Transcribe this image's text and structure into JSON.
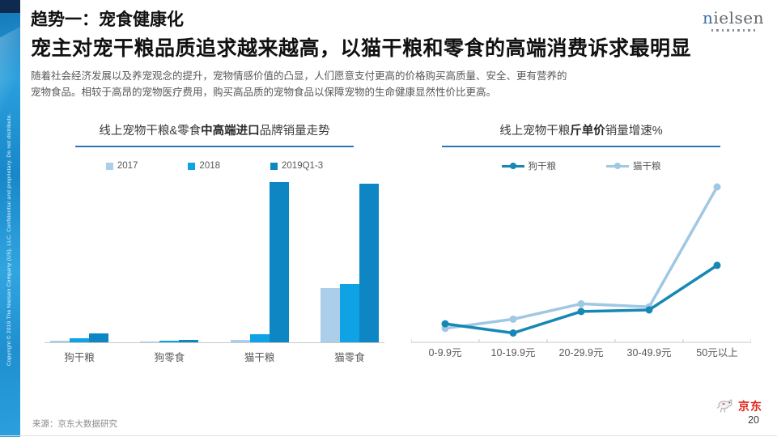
{
  "header": {
    "title": "趋势一：宠食健康化",
    "subtitle": "宠主对宠干粮品质追求越来越高，以猫干粮和零食的高端消费诉求最明显",
    "body_line1": "随着社会经济发展以及养宠观念的提升，宠物情感价值的凸显，人们愿意支付更高的价格购买高质量、安全、更有营养的",
    "body_line2": "宠物食品。相较于高昂的宠物医疗费用，购买高品质的宠物食品以保障宠物的生命健康显然性价比更高。"
  },
  "branding": {
    "nielsen_first_letter": "n",
    "nielsen_rest": "ielsen",
    "jd_label": "京东"
  },
  "sidebar": {
    "copyright": "Copyright © 2019 The Nielsen Company (US), LLC. Confidential and proprietary. Do not distribute."
  },
  "footer": {
    "source": "来源：京东大数据研究",
    "page_number": "20"
  },
  "colors": {
    "underline": "#2e74b5",
    "axis": "#c9c9c9",
    "bar_2017": "#abceeb",
    "bar_2018": "#0fa3e6",
    "bar_2019": "#0d86c3",
    "line_dog": "#1787b5",
    "line_cat": "#a0c8e2",
    "jd_red": "#e1251b"
  },
  "chart_data": [
    {
      "type": "bar",
      "title": "线上宠物干粮&零食中高端进口品牌销量走势",
      "title_parts": {
        "prefix": "线上宠物干粮&零食",
        "bold": "中高端进口",
        "suffix": "品牌销量走势"
      },
      "categories": [
        "狗干粮",
        "狗零食",
        "猫干粮",
        "猫零食"
      ],
      "series": [
        {
          "name": "2017",
          "color": "#abceeb",
          "values": [
            1.1,
            0.3,
            1.7,
            34
          ]
        },
        {
          "name": "2018",
          "color": "#0fa3e6",
          "values": [
            2.3,
            1.0,
            5.2,
            36.5
          ]
        },
        {
          "name": "2019Q1-3",
          "color": "#0d86c3",
          "values": [
            5.6,
            1.4,
            100,
            99
          ]
        }
      ],
      "ylabel": "",
      "ylim": [
        0,
        100
      ],
      "grid": false,
      "legend_position": "top",
      "note": "values are relative estimates; no y-axis labels shown in source"
    },
    {
      "type": "line",
      "title": "线上宠物干粮斤单价销量增速%",
      "title_parts": {
        "prefix": "线上宠物干粮",
        "bold": "斤单价",
        "suffix": "销量增速%"
      },
      "categories": [
        "0-9.9元",
        "10-19.9元",
        "20-29.9元",
        "30-49.9元",
        "50元以上"
      ],
      "series": [
        {
          "name": "狗干粮",
          "color": "#1787b5",
          "values": [
            11,
            5,
            19,
            20,
            49
          ]
        },
        {
          "name": "猫干粮",
          "color": "#a0c8e2",
          "values": [
            8,
            14,
            24,
            22,
            100
          ]
        }
      ],
      "ylabel": "",
      "ylim": [
        0,
        100
      ],
      "grid": false,
      "legend_position": "top",
      "note": "values are relative estimates; no y-axis labels shown in source"
    }
  ]
}
